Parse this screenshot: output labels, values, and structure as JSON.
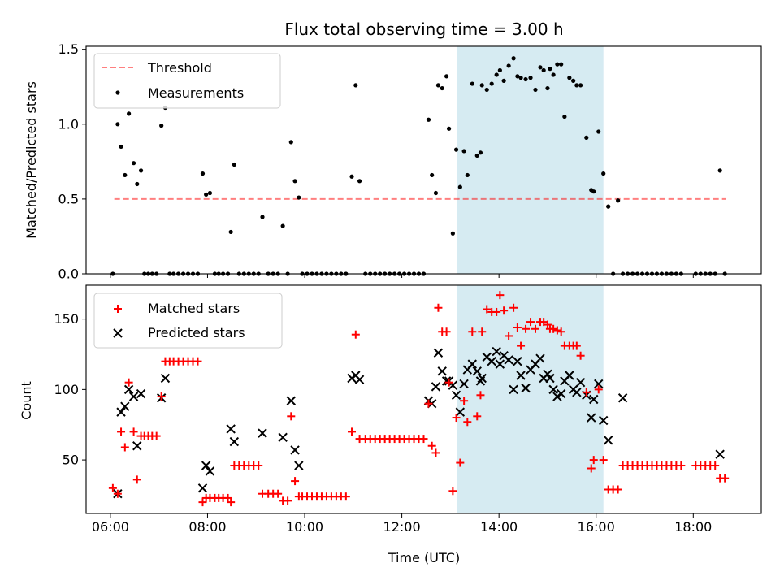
{
  "chart_data": {
    "type": "scatter",
    "title": "Flux total observing time = 3.00 h",
    "xlabel": "Time (UTC)",
    "x_ticks": [
      "06:00",
      "08:00",
      "10:00",
      "12:00",
      "14:00",
      "16:00",
      "18:00"
    ],
    "xlim_hours": [
      5.5,
      19.4
    ],
    "highlight_span_hours": [
      13.13,
      16.15
    ],
    "colors": {
      "span": "#add8e6",
      "threshold": "#ff0000",
      "matched": "#ff0000",
      "predicted": "#000000",
      "measurements": "#000000"
    },
    "ratio": {
      "ylabel": "Matched/Predicted stars",
      "ylim": [
        0,
        1.52
      ],
      "y_ticks": [
        "0.0",
        "0.5",
        "1.0",
        "1.5"
      ],
      "legend": [
        "Threshold",
        "Measurements"
      ],
      "legend_loc": "upper left",
      "threshold": {
        "y": 0.5,
        "x_range": [
          6.08,
          18.67
        ]
      },
      "points": [
        [
          6.05,
          0
        ],
        [
          6.15,
          1.0
        ],
        [
          6.22,
          0.85
        ],
        [
          6.3,
          0.66
        ],
        [
          6.38,
          1.07
        ],
        [
          6.48,
          0.74
        ],
        [
          6.55,
          0.6
        ],
        [
          6.63,
          0.69
        ],
        [
          6.7,
          0
        ],
        [
          6.78,
          0
        ],
        [
          6.86,
          0
        ],
        [
          6.95,
          0
        ],
        [
          7.05,
          0.99
        ],
        [
          7.13,
          1.11
        ],
        [
          7.22,
          0
        ],
        [
          7.3,
          0
        ],
        [
          7.4,
          0
        ],
        [
          7.5,
          0
        ],
        [
          7.6,
          0
        ],
        [
          7.7,
          0
        ],
        [
          7.8,
          0
        ],
        [
          7.9,
          0.67
        ],
        [
          7.97,
          0.53
        ],
        [
          8.05,
          0.54
        ],
        [
          8.15,
          0
        ],
        [
          8.23,
          0
        ],
        [
          8.32,
          0
        ],
        [
          8.42,
          0
        ],
        [
          8.48,
          0.28
        ],
        [
          8.55,
          0.73
        ],
        [
          8.65,
          0
        ],
        [
          8.75,
          0
        ],
        [
          8.85,
          0
        ],
        [
          8.95,
          0
        ],
        [
          9.05,
          0
        ],
        [
          9.13,
          0.38
        ],
        [
          9.25,
          0
        ],
        [
          9.35,
          0
        ],
        [
          9.45,
          0
        ],
        [
          9.55,
          0.32
        ],
        [
          9.65,
          0
        ],
        [
          9.72,
          0.88
        ],
        [
          9.8,
          0.62
        ],
        [
          9.88,
          0.51
        ],
        [
          9.95,
          0
        ],
        [
          10.05,
          0
        ],
        [
          10.15,
          0
        ],
        [
          10.25,
          0
        ],
        [
          10.35,
          0
        ],
        [
          10.45,
          0
        ],
        [
          10.55,
          0
        ],
        [
          10.65,
          0
        ],
        [
          10.75,
          0
        ],
        [
          10.85,
          0
        ],
        [
          10.97,
          0.65
        ],
        [
          11.05,
          1.26
        ],
        [
          11.13,
          0.62
        ],
        [
          11.25,
          0
        ],
        [
          11.35,
          0
        ],
        [
          11.45,
          0
        ],
        [
          11.55,
          0
        ],
        [
          11.65,
          0
        ],
        [
          11.75,
          0
        ],
        [
          11.85,
          0
        ],
        [
          11.95,
          0
        ],
        [
          12.05,
          0
        ],
        [
          12.15,
          0
        ],
        [
          12.25,
          0
        ],
        [
          12.35,
          0
        ],
        [
          12.45,
          0
        ],
        [
          12.55,
          1.03
        ],
        [
          12.62,
          0.66
        ],
        [
          12.7,
          0.54
        ],
        [
          12.75,
          1.26
        ],
        [
          12.83,
          1.24
        ],
        [
          12.92,
          1.32
        ],
        [
          12.97,
          0.97
        ],
        [
          13.05,
          0.27
        ],
        [
          13.12,
          0.83
        ],
        [
          13.2,
          0.58
        ],
        [
          13.28,
          0.82
        ],
        [
          13.35,
          0.66
        ],
        [
          13.45,
          1.27
        ],
        [
          13.55,
          0.79
        ],
        [
          13.62,
          0.81
        ],
        [
          13.65,
          1.26
        ],
        [
          13.75,
          1.23
        ],
        [
          13.85,
          1.27
        ],
        [
          13.95,
          1.33
        ],
        [
          14.02,
          1.36
        ],
        [
          14.1,
          1.29
        ],
        [
          14.2,
          1.39
        ],
        [
          14.3,
          1.44
        ],
        [
          14.38,
          1.32
        ],
        [
          14.45,
          1.31
        ],
        [
          14.55,
          1.3
        ],
        [
          14.65,
          1.31
        ],
        [
          14.75,
          1.23
        ],
        [
          14.85,
          1.38
        ],
        [
          14.92,
          1.36
        ],
        [
          15.0,
          1.24
        ],
        [
          15.05,
          1.37
        ],
        [
          15.12,
          1.33
        ],
        [
          15.2,
          1.4
        ],
        [
          15.28,
          1.4
        ],
        [
          15.35,
          1.05
        ],
        [
          15.45,
          1.31
        ],
        [
          15.53,
          1.29
        ],
        [
          15.6,
          1.26
        ],
        [
          15.68,
          1.26
        ],
        [
          15.8,
          0.91
        ],
        [
          15.9,
          0.56
        ],
        [
          15.95,
          0.55
        ],
        [
          16.05,
          0.95
        ],
        [
          16.15,
          0.67
        ],
        [
          16.25,
          0.45
        ],
        [
          16.35,
          0
        ],
        [
          16.45,
          0.49
        ],
        [
          16.55,
          0
        ],
        [
          16.65,
          0
        ],
        [
          16.75,
          0
        ],
        [
          16.85,
          0
        ],
        [
          16.95,
          0
        ],
        [
          17.05,
          0
        ],
        [
          17.15,
          0
        ],
        [
          17.25,
          0
        ],
        [
          17.35,
          0
        ],
        [
          17.45,
          0
        ],
        [
          17.55,
          0
        ],
        [
          17.65,
          0
        ],
        [
          17.75,
          0
        ],
        [
          18.05,
          0
        ],
        [
          18.15,
          0
        ],
        [
          18.25,
          0
        ],
        [
          18.35,
          0
        ],
        [
          18.45,
          0
        ],
        [
          18.55,
          0.69
        ],
        [
          18.65,
          0
        ]
      ]
    },
    "counts": {
      "ylabel": "Count",
      "ylim": [
        12,
        174
      ],
      "y_ticks": [
        "50",
        "100",
        "150"
      ],
      "legend": [
        "Matched stars",
        "Predicted stars"
      ],
      "legend_loc": "upper left",
      "matched": [
        [
          6.05,
          30
        ],
        [
          6.15,
          26
        ],
        [
          6.22,
          70
        ],
        [
          6.3,
          59
        ],
        [
          6.38,
          105
        ],
        [
          6.48,
          70
        ],
        [
          6.55,
          36
        ],
        [
          6.63,
          67
        ],
        [
          6.7,
          67
        ],
        [
          6.78,
          67
        ],
        [
          6.86,
          67
        ],
        [
          6.95,
          67
        ],
        [
          7.05,
          95
        ],
        [
          7.13,
          120
        ],
        [
          7.22,
          120
        ],
        [
          7.3,
          120
        ],
        [
          7.4,
          120
        ],
        [
          7.5,
          120
        ],
        [
          7.6,
          120
        ],
        [
          7.7,
          120
        ],
        [
          7.8,
          120
        ],
        [
          7.9,
          20
        ],
        [
          7.97,
          23
        ],
        [
          8.05,
          23
        ],
        [
          8.15,
          23
        ],
        [
          8.23,
          23
        ],
        [
          8.32,
          23
        ],
        [
          8.42,
          23
        ],
        [
          8.48,
          20
        ],
        [
          8.55,
          46
        ],
        [
          8.65,
          46
        ],
        [
          8.75,
          46
        ],
        [
          8.85,
          46
        ],
        [
          8.95,
          46
        ],
        [
          9.05,
          46
        ],
        [
          9.13,
          26
        ],
        [
          9.25,
          26
        ],
        [
          9.35,
          26
        ],
        [
          9.45,
          26
        ],
        [
          9.55,
          21
        ],
        [
          9.65,
          21
        ],
        [
          9.72,
          81
        ],
        [
          9.8,
          35
        ],
        [
          9.88,
          24
        ],
        [
          9.95,
          24
        ],
        [
          10.05,
          24
        ],
        [
          10.15,
          24
        ],
        [
          10.25,
          24
        ],
        [
          10.35,
          24
        ],
        [
          10.45,
          24
        ],
        [
          10.55,
          24
        ],
        [
          10.65,
          24
        ],
        [
          10.75,
          24
        ],
        [
          10.85,
          24
        ],
        [
          10.97,
          70
        ],
        [
          11.05,
          139
        ],
        [
          11.13,
          65
        ],
        [
          11.25,
          65
        ],
        [
          11.35,
          65
        ],
        [
          11.45,
          65
        ],
        [
          11.55,
          65
        ],
        [
          11.65,
          65
        ],
        [
          11.75,
          65
        ],
        [
          11.85,
          65
        ],
        [
          11.95,
          65
        ],
        [
          12.05,
          65
        ],
        [
          12.15,
          65
        ],
        [
          12.25,
          65
        ],
        [
          12.35,
          65
        ],
        [
          12.45,
          65
        ],
        [
          12.55,
          90
        ],
        [
          12.62,
          60
        ],
        [
          12.7,
          55
        ],
        [
          12.75,
          158
        ],
        [
          12.83,
          141
        ],
        [
          12.92,
          141
        ],
        [
          12.97,
          105
        ],
        [
          13.05,
          28
        ],
        [
          13.12,
          80
        ],
        [
          13.2,
          48
        ],
        [
          13.28,
          92
        ],
        [
          13.35,
          77
        ],
        [
          13.45,
          141
        ],
        [
          13.55,
          81
        ],
        [
          13.62,
          96
        ],
        [
          13.65,
          141
        ],
        [
          13.75,
          157
        ],
        [
          13.85,
          155
        ],
        [
          13.95,
          155
        ],
        [
          14.02,
          167
        ],
        [
          14.1,
          156
        ],
        [
          14.2,
          138
        ],
        [
          14.3,
          158
        ],
        [
          14.38,
          144
        ],
        [
          14.45,
          131
        ],
        [
          14.55,
          143
        ],
        [
          14.65,
          148
        ],
        [
          14.75,
          143
        ],
        [
          14.85,
          148
        ],
        [
          14.92,
          148
        ],
        [
          15.0,
          146
        ],
        [
          15.05,
          143
        ],
        [
          15.12,
          143
        ],
        [
          15.2,
          142
        ],
        [
          15.28,
          141
        ],
        [
          15.35,
          131
        ],
        [
          15.45,
          131
        ],
        [
          15.53,
          131
        ],
        [
          15.6,
          131
        ],
        [
          15.68,
          124
        ],
        [
          15.8,
          98
        ],
        [
          15.9,
          44
        ],
        [
          15.95,
          50
        ],
        [
          16.05,
          100
        ],
        [
          16.15,
          50
        ],
        [
          16.25,
          29
        ],
        [
          16.35,
          29
        ],
        [
          16.45,
          29
        ],
        [
          16.55,
          46
        ],
        [
          16.65,
          46
        ],
        [
          16.75,
          46
        ],
        [
          16.85,
          46
        ],
        [
          16.95,
          46
        ],
        [
          17.05,
          46
        ],
        [
          17.15,
          46
        ],
        [
          17.25,
          46
        ],
        [
          17.35,
          46
        ],
        [
          17.45,
          46
        ],
        [
          17.55,
          46
        ],
        [
          17.65,
          46
        ],
        [
          17.75,
          46
        ],
        [
          18.05,
          46
        ],
        [
          18.15,
          46
        ],
        [
          18.25,
          46
        ],
        [
          18.35,
          46
        ],
        [
          18.45,
          46
        ],
        [
          18.55,
          37
        ],
        [
          18.65,
          37
        ]
      ],
      "predicted": [
        [
          6.15,
          26
        ],
        [
          6.22,
          84
        ],
        [
          6.3,
          88
        ],
        [
          6.38,
          100
        ],
        [
          6.48,
          95
        ],
        [
          6.55,
          60
        ],
        [
          6.63,
          97
        ],
        [
          7.05,
          94
        ],
        [
          7.13,
          108
        ],
        [
          7.9,
          30
        ],
        [
          7.97,
          46
        ],
        [
          8.05,
          42
        ],
        [
          8.48,
          72
        ],
        [
          8.55,
          63
        ],
        [
          9.13,
          69
        ],
        [
          9.55,
          66
        ],
        [
          9.72,
          92
        ],
        [
          9.8,
          57
        ],
        [
          9.88,
          46
        ],
        [
          10.97,
          108
        ],
        [
          11.05,
          110
        ],
        [
          11.13,
          107
        ],
        [
          12.55,
          92
        ],
        [
          12.62,
          90
        ],
        [
          12.7,
          102
        ],
        [
          12.75,
          126
        ],
        [
          12.83,
          113
        ],
        [
          12.92,
          106
        ],
        [
          12.97,
          106
        ],
        [
          13.05,
          103
        ],
        [
          13.12,
          96
        ],
        [
          13.2,
          84
        ],
        [
          13.28,
          104
        ],
        [
          13.35,
          114
        ],
        [
          13.45,
          118
        ],
        [
          13.55,
          113
        ],
        [
          13.62,
          106
        ],
        [
          13.65,
          108
        ],
        [
          13.75,
          123
        ],
        [
          13.85,
          120
        ],
        [
          13.95,
          127
        ],
        [
          14.02,
          118
        ],
        [
          14.1,
          124
        ],
        [
          14.2,
          121
        ],
        [
          14.3,
          100
        ],
        [
          14.38,
          120
        ],
        [
          14.45,
          110
        ],
        [
          14.55,
          101
        ],
        [
          14.65,
          114
        ],
        [
          14.75,
          118
        ],
        [
          14.85,
          122
        ],
        [
          14.92,
          108
        ],
        [
          15.0,
          111
        ],
        [
          15.05,
          108
        ],
        [
          15.12,
          100
        ],
        [
          15.2,
          95
        ],
        [
          15.28,
          97
        ],
        [
          15.35,
          106
        ],
        [
          15.45,
          110
        ],
        [
          15.53,
          100
        ],
        [
          15.6,
          98
        ],
        [
          15.68,
          105
        ],
        [
          15.8,
          96
        ],
        [
          15.9,
          80
        ],
        [
          15.95,
          93
        ],
        [
          16.05,
          104
        ],
        [
          16.15,
          78
        ],
        [
          16.25,
          64
        ],
        [
          16.55,
          94
        ],
        [
          18.55,
          54
        ]
      ]
    }
  }
}
